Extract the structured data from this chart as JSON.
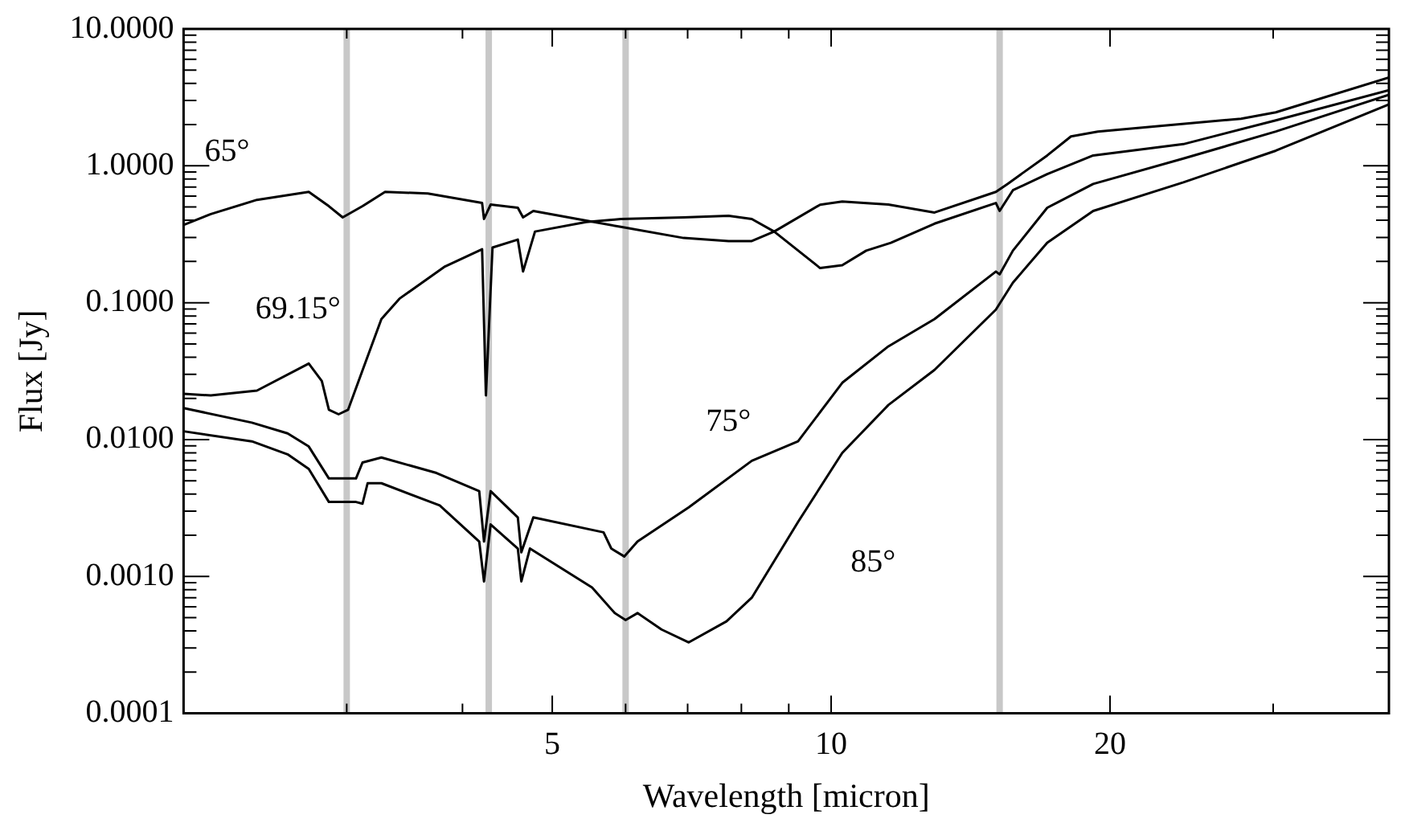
{
  "chart_data": {
    "type": "line",
    "xlabel": "Wavelength [micron]",
    "ylabel": "Flux [Jy]",
    "log": "xy",
    "grid": false,
    "legend": false,
    "marker": "none",
    "line_style": "solid",
    "xlim": [
      2,
      40
    ],
    "xticks": [
      {
        "value": 3,
        "label": null
      },
      {
        "value": 4,
        "label": null
      },
      5,
      {
        "value": 6,
        "label": null
      },
      {
        "value": 7,
        "label": null
      },
      {
        "value": 8,
        "label": null
      },
      {
        "value": 9,
        "label": null
      },
      10,
      20,
      {
        "value": 30,
        "label": null
      }
    ],
    "ylim": [
      0.0001,
      10
    ],
    "yticks": [
      {
        "value": 0.0001,
        "label": "0.0001"
      },
      {
        "value": 0.0002,
        "label": null
      },
      {
        "value": 0.0003,
        "label": null
      },
      {
        "value": 0.0004,
        "label": null
      },
      {
        "value": 0.0005,
        "label": null
      },
      {
        "value": 0.0006,
        "label": null
      },
      {
        "value": 0.0007,
        "label": null
      },
      {
        "value": 0.0008,
        "label": null
      },
      {
        "value": 0.0009,
        "label": null
      },
      {
        "value": 0.001,
        "label": "0.0010"
      },
      {
        "value": 0.002,
        "label": null
      },
      {
        "value": 0.003,
        "label": null
      },
      {
        "value": 0.004,
        "label": null
      },
      {
        "value": 0.005,
        "label": null
      },
      {
        "value": 0.006,
        "label": null
      },
      {
        "value": 0.007,
        "label": null
      },
      {
        "value": 0.008,
        "label": null
      },
      {
        "value": 0.009,
        "label": null
      },
      {
        "value": 0.01,
        "label": "0.0100"
      },
      {
        "value": 0.02,
        "label": null
      },
      {
        "value": 0.03,
        "label": null
      },
      {
        "value": 0.04,
        "label": null
      },
      {
        "value": 0.05,
        "label": null
      },
      {
        "value": 0.06,
        "label": null
      },
      {
        "value": 0.07,
        "label": null
      },
      {
        "value": 0.08,
        "label": null
      },
      {
        "value": 0.09,
        "label": null
      },
      {
        "value": 0.1,
        "label": "0.1000"
      },
      {
        "value": 0.2,
        "label": null
      },
      {
        "value": 0.3,
        "label": null
      },
      {
        "value": 0.4,
        "label": null
      },
      {
        "value": 0.5,
        "label": null
      },
      {
        "value": 0.6,
        "label": null
      },
      {
        "value": 0.7,
        "label": null
      },
      {
        "value": 0.8,
        "label": null
      },
      {
        "value": 0.9,
        "label": null
      },
      {
        "value": 1,
        "label": "1.0000"
      },
      {
        "value": 2,
        "label": null
      },
      {
        "value": 3,
        "label": null
      },
      {
        "value": 4,
        "label": null
      },
      {
        "value": 5,
        "label": null
      },
      {
        "value": 6,
        "label": null
      },
      {
        "value": 7,
        "label": null
      },
      {
        "value": 8,
        "label": null
      },
      {
        "value": 9,
        "label": null
      },
      {
        "value": 10,
        "label": "10.0000"
      }
    ],
    "ref_lines": [
      {
        "axis": "x",
        "value": 3.0,
        "color": "#c8c8c8"
      },
      {
        "axis": "x",
        "value": 4.27,
        "color": "#c8c8c8"
      },
      {
        "axis": "x",
        "value": 6.0,
        "color": "#c8c8c8"
      },
      {
        "axis": "x",
        "value": 15.2,
        "color": "#c8c8c8"
      }
    ],
    "annotations": [
      "65°",
      "69.15°",
      "75°",
      "85°"
    ],
    "series": [
      {
        "color": "#000000",
        "x": [
          2.0,
          2.14,
          2.4,
          2.73,
          2.87,
          2.97,
          3.12,
          3.3,
          3.67,
          4.2,
          4.22,
          4.29,
          4.59,
          4.65,
          4.77,
          5.44,
          5.93,
          6.93,
          7.75,
          8.21,
          8.68,
          9.73,
          10.28,
          11.53,
          12.93,
          15.06,
          15.5,
          17.11,
          18.15,
          19.4,
          27.7,
          30.2,
          40
        ],
        "values": [
          0.37,
          0.444,
          0.564,
          0.645,
          0.507,
          0.42,
          0.507,
          0.645,
          0.628,
          0.535,
          0.409,
          0.521,
          0.494,
          0.42,
          0.468,
          0.398,
          0.358,
          0.297,
          0.282,
          0.282,
          0.331,
          0.52,
          0.549,
          0.521,
          0.456,
          0.645,
          0.737,
          1.19,
          1.64,
          1.78,
          2.21,
          2.46,
          4.42
        ]
      },
      {
        "color": "#000000",
        "x": [
          2.0,
          2.14,
          2.4,
          2.73,
          2.82,
          2.87,
          2.94,
          3.01,
          3.13,
          3.27,
          3.42,
          3.83,
          4.2,
          4.24,
          4.31,
          4.59,
          4.65,
          4.79,
          5.44,
          5.93,
          6.93,
          7.75,
          8.21,
          8.68,
          9.73,
          10.28,
          10.91,
          11.6,
          12.93,
          15.06,
          15.2,
          15.71,
          17.11,
          19.18,
          24.0,
          30.2,
          40
        ],
        "values": [
          0.0216,
          0.021,
          0.0228,
          0.0359,
          0.0268,
          0.0165,
          0.0153,
          0.0165,
          0.034,
          0.076,
          0.107,
          0.184,
          0.246,
          0.021,
          0.253,
          0.289,
          0.169,
          0.331,
          0.388,
          0.409,
          0.42,
          0.432,
          0.409,
          0.331,
          0.179,
          0.188,
          0.24,
          0.274,
          0.378,
          0.535,
          0.468,
          0.663,
          0.87,
          1.19,
          1.44,
          2.15,
          3.57
        ]
      },
      {
        "color": "#000000",
        "x": [
          2.0,
          2.37,
          2.59,
          2.73,
          2.87,
          2.97,
          3.07,
          3.12,
          3.27,
          3.75,
          4.17,
          4.22,
          4.29,
          4.59,
          4.63,
          4.77,
          5.68,
          5.79,
          5.98,
          6.18,
          7.02,
          8.21,
          9.21,
          10.28,
          11.53,
          12.93,
          15.06,
          15.2,
          15.71,
          17.11,
          19.18,
          24.0,
          30.2,
          40
        ],
        "values": [
          0.017,
          0.0133,
          0.0111,
          0.0089,
          0.0052,
          0.0052,
          0.0052,
          0.0068,
          0.0074,
          0.0057,
          0.0042,
          0.0018,
          0.0042,
          0.0027,
          0.0015,
          0.0027,
          0.0021,
          0.0016,
          0.0014,
          0.0018,
          0.0032,
          0.007,
          0.0097,
          0.026,
          0.048,
          0.076,
          0.169,
          0.161,
          0.24,
          0.494,
          0.737,
          1.13,
          1.78,
          3.3
        ]
      },
      {
        "color": "#000000",
        "x": [
          2.0,
          2.37,
          2.59,
          2.73,
          2.87,
          3.07,
          3.12,
          3.16,
          3.27,
          3.78,
          4.17,
          4.22,
          4.29,
          4.59,
          4.63,
          4.73,
          5.52,
          5.84,
          6.0,
          6.18,
          6.56,
          7.02,
          7.71,
          8.21,
          9.21,
          10.28,
          11.53,
          12.93,
          15.06,
          15.71,
          17.11,
          19.18,
          24.0,
          30.2,
          40
        ],
        "values": [
          0.0115,
          0.0097,
          0.0078,
          0.0061,
          0.0035,
          0.0035,
          0.0034,
          0.0048,
          0.0048,
          0.0033,
          0.0018,
          0.00092,
          0.0024,
          0.0016,
          0.00092,
          0.0016,
          0.00083,
          0.00054,
          0.00048,
          0.00054,
          0.00041,
          0.00033,
          0.00047,
          0.0007,
          0.0025,
          0.008,
          0.0179,
          0.0323,
          0.089,
          0.14,
          0.274,
          0.468,
          0.757,
          1.29,
          2.81
        ]
      }
    ]
  }
}
